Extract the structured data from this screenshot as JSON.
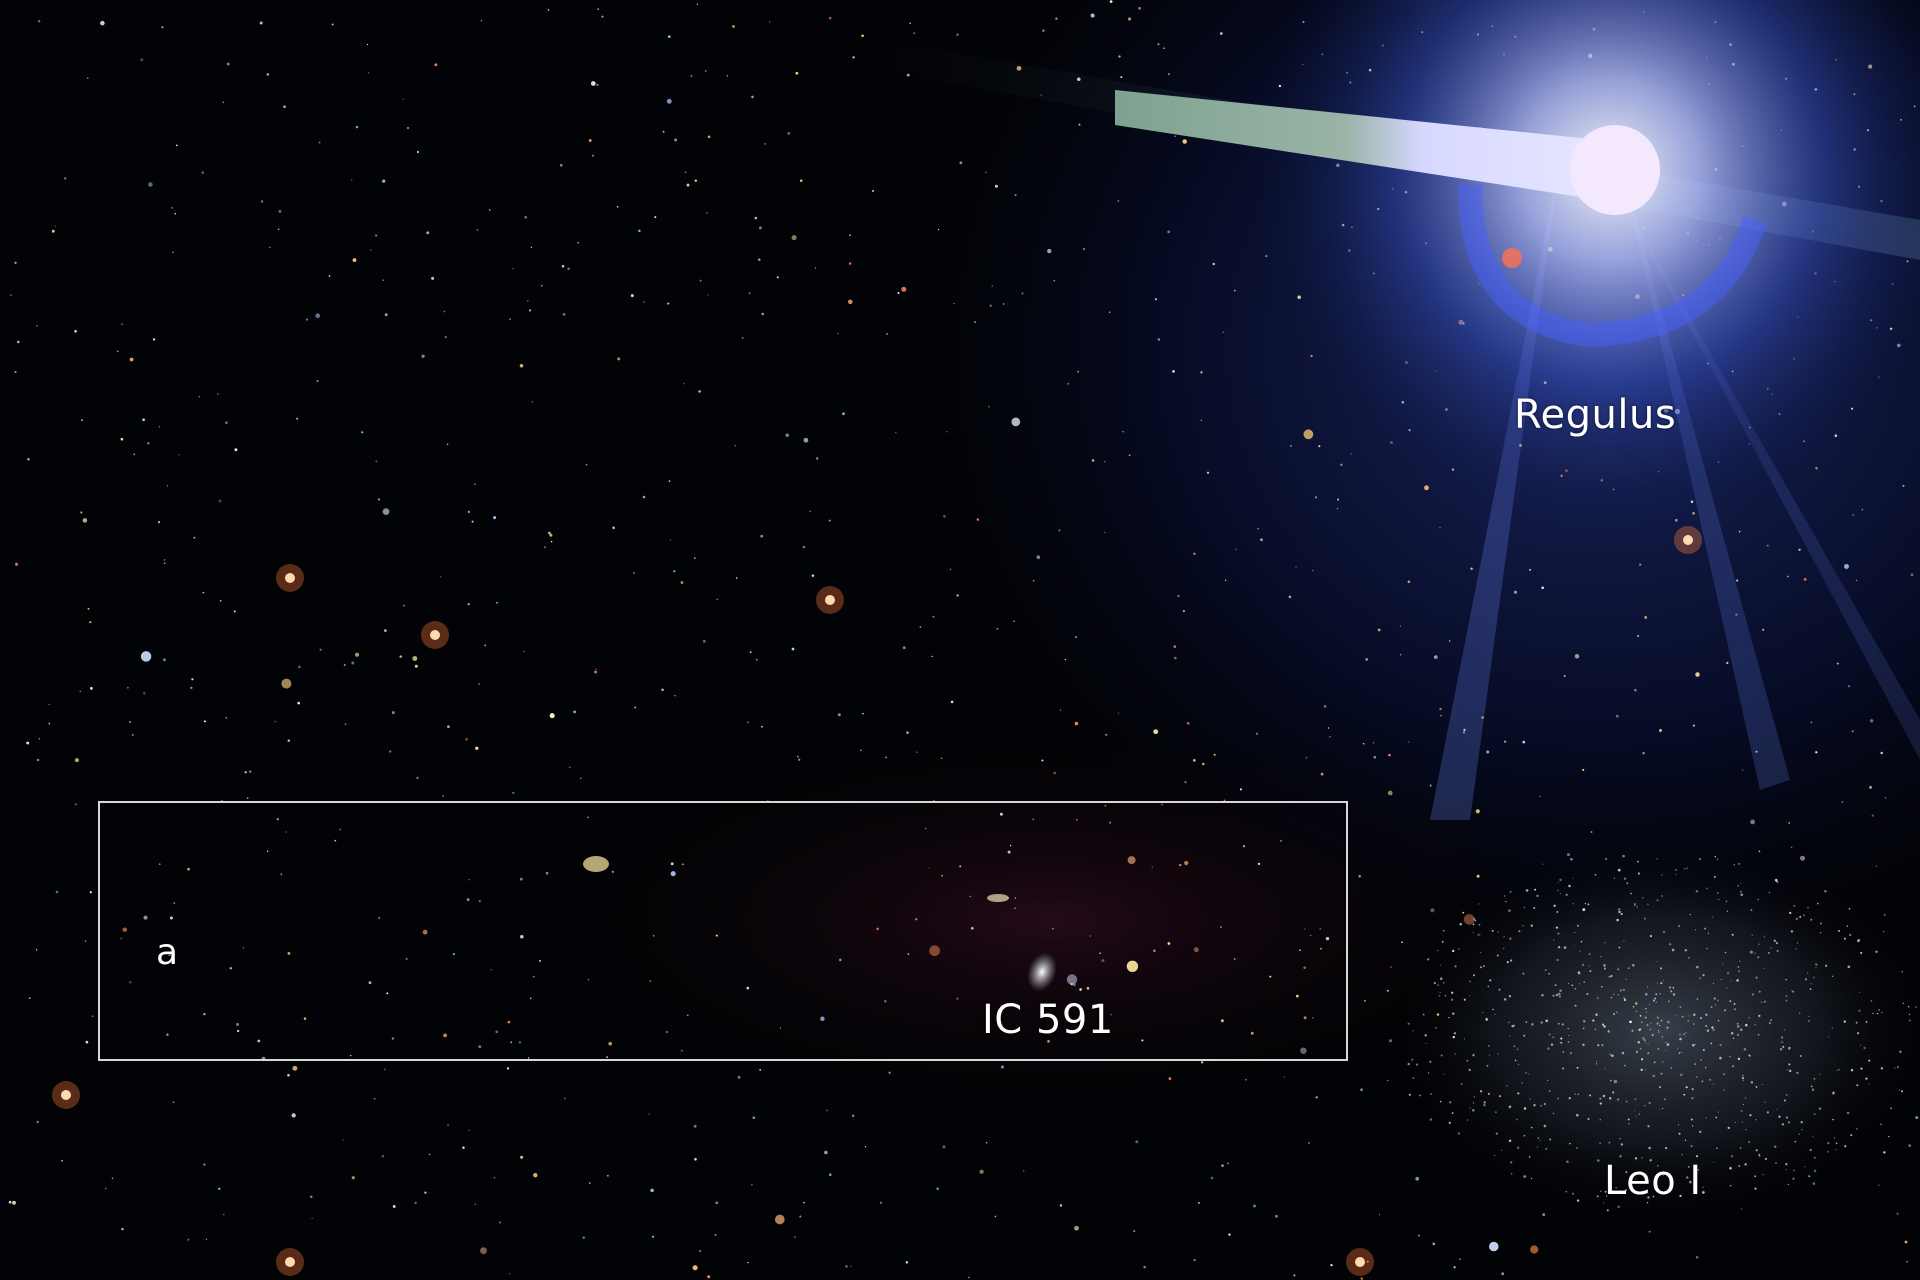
{
  "labels": {
    "regulus": "Regulus",
    "ic591": "IC 591",
    "leo_i": "Leo I",
    "a": "a"
  },
  "colors": {
    "background": "#020306",
    "glare": "#8aa8ff",
    "frame": "#d8d8d8"
  }
}
